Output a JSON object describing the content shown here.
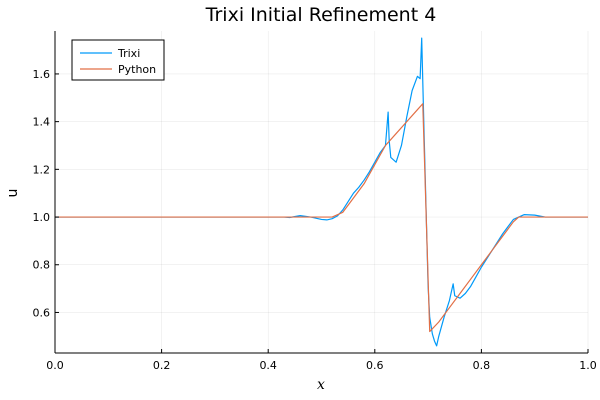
{
  "chart_data": {
    "type": "line",
    "title": "Trixi Initial Refinement 4",
    "xlabel": "x",
    "ylabel": "u",
    "xlim": [
      0,
      1
    ],
    "ylim": [
      0.43,
      1.78
    ],
    "xticks": [
      0,
      0.2,
      0.4,
      0.6,
      0.8,
      1.0
    ],
    "xtick_labels": [
      "0.0",
      "0.2",
      "0.4",
      "0.6",
      "0.8",
      "1.0"
    ],
    "yticks": [
      0.6,
      0.8,
      1.0,
      1.2,
      1.4,
      1.6
    ],
    "ytick_labels": [
      "0.6",
      "0.8",
      "1.0",
      "1.2",
      "1.4",
      "1.6"
    ],
    "grid": true,
    "legend_position": "top-left",
    "series": [
      {
        "name": "Trixi",
        "color": "#009af9",
        "x": [
          0,
          0.1,
          0.2,
          0.3,
          0.38,
          0.43,
          0.44,
          0.46,
          0.48,
          0.5,
          0.51,
          0.52,
          0.53,
          0.54,
          0.55,
          0.56,
          0.57,
          0.58,
          0.59,
          0.6,
          0.61,
          0.62,
          0.625,
          0.627,
          0.63,
          0.64,
          0.65,
          0.66,
          0.67,
          0.68,
          0.685,
          0.688,
          0.692,
          0.7,
          0.703,
          0.708,
          0.712,
          0.716,
          0.72,
          0.73,
          0.74,
          0.747,
          0.75,
          0.76,
          0.77,
          0.78,
          0.79,
          0.8,
          0.82,
          0.84,
          0.86,
          0.88,
          0.9,
          0.92,
          0.94,
          1.0
        ],
        "values": [
          1.0,
          1.0,
          1.0,
          1.0,
          1.0,
          1.0,
          0.998,
          1.006,
          1.0,
          0.99,
          0.988,
          0.993,
          1.005,
          1.03,
          1.065,
          1.1,
          1.125,
          1.155,
          1.19,
          1.23,
          1.27,
          1.3,
          1.44,
          1.32,
          1.25,
          1.23,
          1.3,
          1.42,
          1.53,
          1.59,
          1.58,
          1.75,
          1.39,
          0.71,
          0.58,
          0.51,
          0.48,
          0.46,
          0.5,
          0.58,
          0.65,
          0.72,
          0.67,
          0.66,
          0.68,
          0.71,
          0.75,
          0.79,
          0.86,
          0.93,
          0.99,
          1.01,
          1.008,
          1.0,
          1.0,
          1.0
        ]
      },
      {
        "name": "Python",
        "color": "#e26f46",
        "x": [
          0,
          0.1,
          0.2,
          0.3,
          0.4,
          0.45,
          0.5,
          0.52,
          0.54,
          0.56,
          0.58,
          0.6,
          0.62,
          0.64,
          0.66,
          0.68,
          0.69,
          0.703,
          0.72,
          0.74,
          0.76,
          0.78,
          0.8,
          0.82,
          0.84,
          0.86,
          0.87,
          0.9,
          1.0
        ],
        "values": [
          1.0,
          1.0,
          1.0,
          1.0,
          1.0,
          1.0,
          1.0,
          1.0,
          1.02,
          1.08,
          1.14,
          1.22,
          1.3,
          1.35,
          1.4,
          1.45,
          1.475,
          0.52,
          0.56,
          0.62,
          0.68,
          0.74,
          0.8,
          0.86,
          0.92,
          0.98,
          1.0,
          1.0,
          1.0
        ]
      }
    ]
  }
}
